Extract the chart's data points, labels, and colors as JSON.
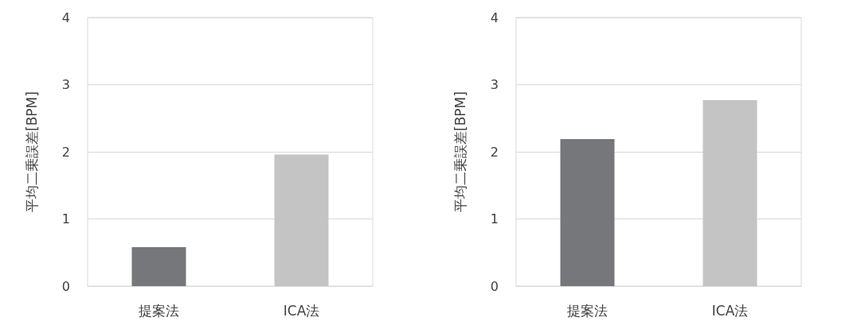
{
  "chart_data": [
    {
      "type": "bar",
      "ylabel": "平均二乗誤差[BPM]",
      "categories": [
        "提案法",
        "ICA法"
      ],
      "values": [
        0.58,
        1.96
      ],
      "colors": [
        "#76777a",
        "#c4c4c4"
      ],
      "ylim": [
        0,
        4
      ],
      "yticks": [
        0,
        1,
        2,
        3,
        4
      ],
      "grid": "y"
    },
    {
      "type": "bar",
      "ylabel": "平均二乗誤差[BPM]",
      "categories": [
        "提案法",
        "ICA法"
      ],
      "values": [
        2.19,
        2.77
      ],
      "colors": [
        "#76777a",
        "#c4c4c4"
      ],
      "ylim": [
        0,
        4
      ],
      "yticks": [
        0,
        1,
        2,
        3,
        4
      ],
      "grid": "y"
    }
  ]
}
